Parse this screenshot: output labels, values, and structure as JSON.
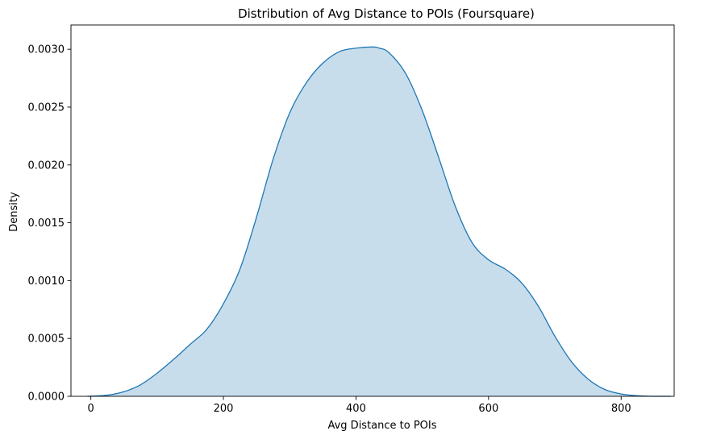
{
  "chart_data": {
    "type": "area",
    "title": "Distribution of Avg Distance to POIs (Foursquare)",
    "xlabel": "Avg Distance to POIs",
    "ylabel": "Density",
    "xlim": [
      -30,
      880
    ],
    "ylim": [
      0,
      0.00321
    ],
    "xticks": [
      0,
      200,
      400,
      600,
      800
    ],
    "xtick_labels": [
      "0",
      "200",
      "400",
      "600",
      "800"
    ],
    "yticks": [
      0,
      0.0005,
      0.001,
      0.0015,
      0.002,
      0.0025,
      0.003
    ],
    "ytick_labels": [
      "0.0000",
      "0.0005",
      "0.0010",
      "0.0015",
      "0.0020",
      "0.0025",
      "0.0030"
    ],
    "grid": false,
    "line_color": "#1f77b4",
    "fill_color": "#1f77b4",
    "fill_opacity": 0.25,
    "series": [
      {
        "x": [
          -5,
          25,
          50,
          75,
          100,
          125,
          150,
          175,
          200,
          225,
          250,
          275,
          300,
          325,
          350,
          375,
          400,
          425,
          435,
          450,
          475,
          500,
          525,
          550,
          575,
          600,
          625,
          650,
          675,
          700,
          725,
          750,
          775,
          800,
          825,
          850,
          875
        ],
        "y": [
          0.0,
          1e-05,
          4e-05,
          0.0001,
          0.0002,
          0.00032,
          0.00045,
          0.00058,
          0.0008,
          0.0011,
          0.00155,
          0.00205,
          0.00245,
          0.00271,
          0.00288,
          0.00298,
          0.00301,
          0.00302,
          0.00301,
          0.00297,
          0.00279,
          0.00247,
          0.00206,
          0.00164,
          0.00133,
          0.00118,
          0.0011,
          0.00098,
          0.00078,
          0.00052,
          0.0003,
          0.00015,
          6e-05,
          2e-05,
          5e-06,
          0.0,
          0.0
        ]
      }
    ]
  }
}
